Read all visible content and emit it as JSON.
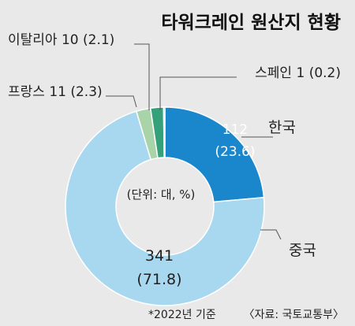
{
  "title": "타워크레인 원산지 현황",
  "unit_note": "(단위: 대, %)",
  "footnote": "*2022년 기준",
  "source": "〈자료: 국토교통부〉",
  "chart_data": {
    "type": "pie",
    "style": "donut",
    "start": "top, clockwise",
    "slices": [
      {
        "name": "한국",
        "value": 112,
        "percent": 23.6,
        "value_label": "112",
        "percent_label": "(23.6)",
        "color": "#1a87cc",
        "label_color": "#ffffff"
      },
      {
        "name": "중국",
        "value": 341,
        "percent": 71.8,
        "value_label": "341",
        "percent_label": "(71.8)",
        "color": "#a8d8ef",
        "label_color": "#222222"
      },
      {
        "name": "프랑스",
        "value": 11,
        "percent": 2.3,
        "value_label": "",
        "percent_label": "",
        "callout": "프랑스 11 (2.3)",
        "color": "#a9d3a9",
        "label_color": "#222222"
      },
      {
        "name": "이탈리아",
        "value": 10,
        "percent": 2.1,
        "value_label": "",
        "percent_label": "",
        "callout": "이탈리아 10 (2.1)",
        "color": "#34a17a",
        "label_color": "#222222"
      },
      {
        "name": "스페인",
        "value": 1,
        "percent": 0.2,
        "value_label": "",
        "percent_label": "",
        "callout": "스페인 1 (0.2)",
        "color": "#1e4f63",
        "label_color": "#222222"
      }
    ]
  }
}
